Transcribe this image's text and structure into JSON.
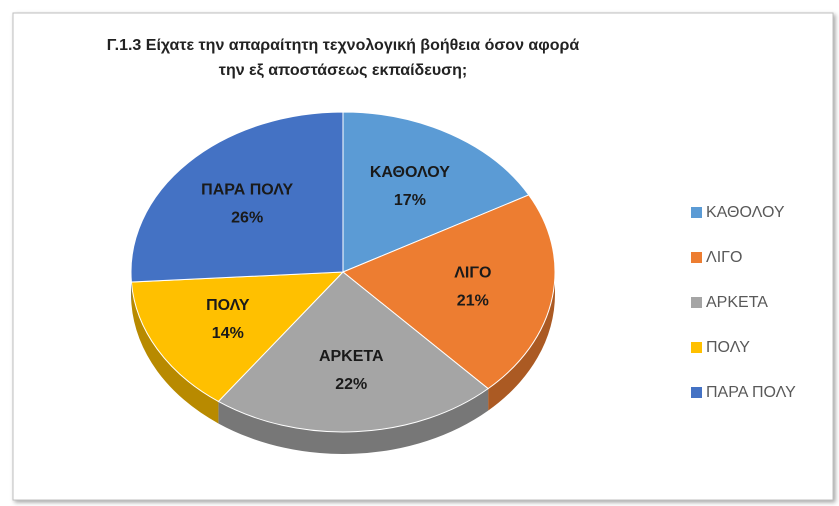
{
  "chart_data": {
    "type": "pie",
    "title": [
      "Γ.1.3  Είχατε την απαραίτητη τεχνολογική βοήθεια όσον αφορά",
      "την εξ αποστάσεως εκπαίδευση;"
    ],
    "categories": [
      "ΚΑΘΟΛΟΥ",
      "ΛΙΓΟ",
      "ΑΡΚΕΤΑ",
      "ΠΟΛΥ",
      "ΠΑΡΑ ΠΟΛΥ"
    ],
    "values": [
      17,
      21,
      22,
      14,
      26
    ],
    "value_labels": [
      "17%",
      "21%",
      "22%",
      "14%",
      "26%"
    ],
    "colors": [
      "#5b9bd5",
      "#ed7d31",
      "#a5a5a5",
      "#ffc000",
      "#4472c4"
    ],
    "legend": "right"
  }
}
